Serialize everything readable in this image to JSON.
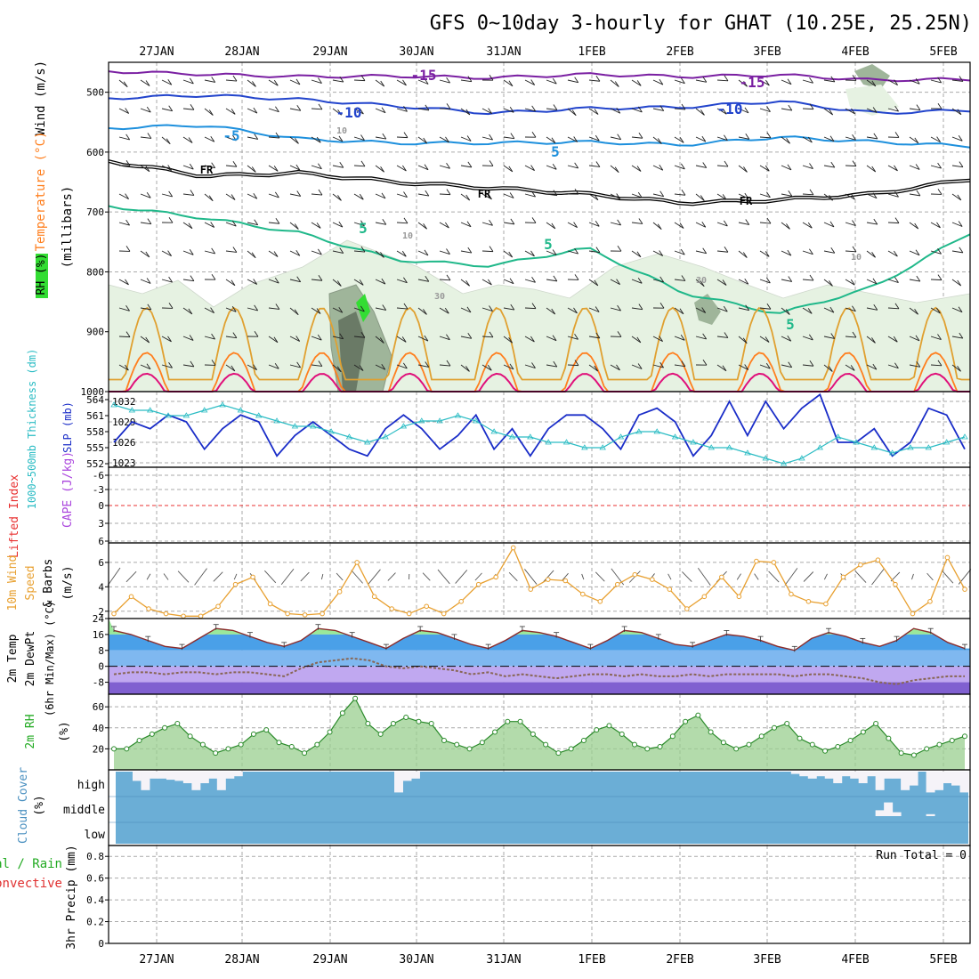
{
  "title": "GFS 0~10day 3-hourly for GHAT (10.25E, 25.25N)",
  "date_labels": [
    "27JAN",
    "28JAN",
    "29JAN",
    "30JAN",
    "31JAN",
    "1FEB",
    "2FEB",
    "3FEB",
    "4FEB",
    "5FEB"
  ],
  "colors": {
    "frame": "#000000",
    "grid": "#aaaaaa",
    "iso_m15": "#7a1fa2",
    "iso_m10": "#2244cc",
    "iso_m5": "#1e90dd",
    "iso_fr": "#000000",
    "iso_p5": "#20b88a",
    "iso_p10": "#e0a030",
    "iso_p15": "#ff7f1e",
    "iso_p20": "#e0107a",
    "rh_light": "#e6f2e2",
    "rh_mid": "#9fb59a",
    "rh_dark": "#6a7a66",
    "rh_bright": "#33dd33",
    "slp": "#1a2dc8",
    "thickness": "#2bbcc4",
    "wind10": "#e8a030",
    "barb": "#555555",
    "temp_warm": "#2a7fe0",
    "temp_green": "#22cc22",
    "temp_cold": "#a080e0",
    "dewpt": "#886655",
    "rh2m_fill": "#9acf8f",
    "cloud_sky": "#6baed6",
    "cloud_cover": "#f5f3f8",
    "lifted": "#e83030",
    "cape": "#aa44dd"
  },
  "chart_data": [
    {
      "type": "contour",
      "panel": "upper-air",
      "ylabel_parts": [
        "Wind (m/s)",
        "Temperature (°C)",
        "RH (%)",
        "(millibars)"
      ],
      "y_ticks": [
        500,
        600,
        700,
        800,
        900,
        1000
      ],
      "ylim": [
        450,
        1000
      ],
      "isotherm_labels": [
        "-15",
        "-15",
        "-10",
        "-10",
        "-5",
        "5",
        "FR",
        "FR",
        "FR",
        "5",
        "5",
        "5"
      ],
      "isotherm_levels_mb": {
        "m15": [
          465,
          470,
          474,
          473,
          476,
          470,
          474,
          471,
          480,
          478
        ],
        "m10": [
          510,
          505,
          512,
          523,
          535,
          527,
          525,
          515,
          535,
          530
        ],
        "m5": [
          560,
          555,
          578,
          585,
          585,
          583,
          588,
          575,
          583,
          590
        ],
        "fr": [
          615,
          640,
          635,
          650,
          660,
          670,
          685,
          680,
          670,
          645
        ],
        "p5": [
          690,
          710,
          735,
          780,
          790,
          760,
          835,
          870,
          825,
          735
        ]
      },
      "rh_contour_labels": [
        "10",
        "10",
        "10",
        "30",
        "30"
      ]
    },
    {
      "type": "line",
      "panel": "slp-thickness",
      "y_left_ticks": [
        "564",
        "561",
        "558",
        "555",
        "552"
      ],
      "y_right_ticks": [
        "1032",
        "1029",
        "1026",
        "1023"
      ],
      "ylabel_left": "1000~500mb Thickness (dm)",
      "ylabel_right": "SLP (mb)",
      "series": [
        {
          "name": "SLP (mb)",
          "values": [
            1026,
            1029,
            1028,
            1030,
            1029,
            1025,
            1028,
            1030,
            1029,
            1024,
            1027,
            1029,
            1027,
            1025,
            1024,
            1028,
            1030,
            1028,
            1025,
            1027,
            1030,
            1025,
            1028,
            1024,
            1028,
            1030,
            1030,
            1028,
            1025,
            1030,
            1031,
            1029,
            1024,
            1027,
            1032,
            1027,
            1032,
            1028,
            1031,
            1033,
            1026,
            1026,
            1028,
            1024,
            1026,
            1031,
            1030,
            1025
          ]
        },
        {
          "name": "Thickness (dm)",
          "values": [
            563,
            562,
            562,
            561,
            561,
            562,
            563,
            562,
            561,
            560,
            559,
            559,
            558,
            557,
            556,
            557,
            559,
            560,
            560,
            561,
            560,
            558,
            557,
            557,
            556,
            556,
            555,
            555,
            557,
            558,
            558,
            557,
            556,
            555,
            555,
            554,
            553,
            552,
            553,
            555,
            557,
            556,
            555,
            554,
            555,
            555,
            556,
            557
          ]
        }
      ]
    },
    {
      "type": "line",
      "panel": "stability",
      "ylabel_left": "Lifted Index",
      "ylabel_right": "CAPE (J/kg)",
      "y_ticks": [
        "-6",
        "-3",
        "0",
        "3",
        "6"
      ],
      "series": [
        {
          "name": "Lifted Index",
          "values": [
            0
          ]
        }
      ]
    },
    {
      "type": "line",
      "panel": "wind10m",
      "ylabel": "10m Wind Speed & Barbs (m/s)",
      "y_ticks": [
        "6",
        "4",
        "2"
      ],
      "ylim": [
        1.4,
        7.6
      ],
      "series": [
        {
          "name": "10m Wind Speed",
          "values": [
            1.8,
            3.2,
            2.2,
            1.8,
            1.6,
            1.6,
            2.4,
            4.2,
            4.8,
            2.6,
            1.8,
            1.7,
            1.8,
            3.6,
            6.0,
            3.2,
            2.2,
            1.8,
            2.4,
            1.8,
            2.8,
            4.2,
            4.8,
            7.2,
            3.8,
            4.6,
            4.5,
            3.4,
            2.8,
            4.2,
            5.0,
            4.6,
            3.8,
            2.2,
            3.2,
            4.8,
            3.2,
            6.1,
            6.0,
            3.4,
            2.8,
            2.6,
            4.8,
            5.8,
            6.2,
            4.2,
            1.8,
            2.8,
            6.4,
            3.8
          ]
        }
      ]
    },
    {
      "type": "area",
      "panel": "temperature",
      "ylabel_parts": [
        "2m Temp",
        "2m DewPt",
        "(6hr Min/Max) (°C)"
      ],
      "y_ticks": [
        "24",
        "16",
        "8",
        "0",
        "-8"
      ],
      "ylim": [
        -14,
        24
      ],
      "series": [
        {
          "name": "2m Temp",
          "values": [
            18,
            16,
            13,
            10,
            9,
            14,
            19,
            18,
            15,
            12,
            10,
            13,
            19,
            18,
            15,
            12,
            9,
            14,
            18,
            17,
            14,
            11,
            9,
            13,
            18,
            17,
            15,
            12,
            9,
            13,
            18,
            17,
            14,
            11,
            10,
            13,
            16,
            15,
            13,
            10,
            8,
            14,
            17,
            15,
            12,
            10,
            13,
            19,
            17,
            12,
            9
          ]
        },
        {
          "name": "2m DewPt",
          "values": [
            -4,
            -3,
            -3,
            -4,
            -3,
            -3,
            -4,
            -3,
            -3,
            -4,
            -5,
            -1,
            2,
            3,
            4,
            3,
            0,
            -1,
            0,
            -1,
            -2,
            -4,
            -3,
            -5,
            -4,
            -5,
            -6,
            -5,
            -4,
            -4,
            -5,
            -4,
            -5,
            -5,
            -4,
            -5,
            -4,
            -4,
            -4,
            -4,
            -5,
            -4,
            -4,
            -5,
            -6,
            -8,
            -9,
            -7,
            -6,
            -5,
            -5
          ]
        }
      ]
    },
    {
      "type": "area",
      "panel": "rh2m",
      "ylabel": "2m RH (%)",
      "y_ticks": [
        "60",
        "40",
        "20"
      ],
      "ylim": [
        0,
        72
      ],
      "series": [
        {
          "name": "2m RH",
          "values": [
            20,
            20,
            28,
            34,
            40,
            44,
            32,
            24,
            16,
            20,
            24,
            34,
            38,
            26,
            22,
            16,
            24,
            36,
            54,
            68,
            44,
            34,
            44,
            50,
            46,
            44,
            28,
            24,
            20,
            26,
            36,
            46,
            46,
            34,
            24,
            16,
            20,
            28,
            38,
            42,
            34,
            24,
            20,
            22,
            32,
            46,
            52,
            36,
            26,
            20,
            24,
            32,
            40,
            44,
            30,
            24,
            18,
            22,
            28,
            36,
            44,
            30,
            16,
            14,
            20,
            24,
            28,
            32
          ]
        }
      ]
    },
    {
      "type": "bar",
      "panel": "cloud",
      "ylabel": "Cloud Cover (%)",
      "row_labels": [
        "high",
        "middle",
        "low"
      ],
      "high_cover": [
        0,
        0,
        0.4,
        0.8,
        0.3,
        0.3,
        0.35,
        0.4,
        0.5,
        0.8,
        0.5,
        0.3,
        0.8,
        0.3,
        0.2,
        0,
        0,
        0,
        0,
        0,
        0,
        0,
        0,
        0,
        0,
        0,
        0,
        0,
        0,
        0,
        0,
        0,
        0,
        0.9,
        0.4,
        0.3,
        0,
        0,
        0,
        0,
        0,
        0,
        0,
        0,
        0,
        0,
        0,
        0,
        0,
        0,
        0,
        0,
        0,
        0,
        0,
        0,
        0,
        0,
        0,
        0,
        0,
        0,
        0,
        0,
        0,
        0,
        0,
        0,
        0,
        0,
        0,
        0,
        0,
        0,
        0,
        0,
        0,
        0,
        0,
        0,
        0.1,
        0.2,
        0.3,
        0.2,
        0.3,
        0.5,
        0.2,
        0.3,
        0.5,
        0.2,
        0.8,
        0.3,
        0.3,
        0.8,
        0.6,
        0,
        0.9,
        0.8,
        0.5,
        0.6,
        0.9
      ],
      "mid_cover": [
        0,
        0,
        0,
        0,
        0,
        0,
        0,
        0,
        0,
        0,
        0,
        0,
        0,
        0,
        0,
        0,
        0,
        0,
        0,
        0,
        0,
        0,
        0,
        0,
        0,
        0,
        0,
        0,
        0,
        0,
        0,
        0,
        0,
        0,
        0,
        0,
        0,
        0,
        0,
        0,
        0,
        0,
        0,
        0,
        0,
        0,
        0,
        0,
        0,
        0,
        0,
        0,
        0,
        0,
        0,
        0,
        0,
        0,
        0,
        0,
        0,
        0,
        0,
        0,
        0,
        0,
        0,
        0,
        0,
        0,
        0,
        0,
        0,
        0,
        0,
        0,
        0,
        0,
        0,
        0,
        0,
        0,
        0,
        0,
        0,
        0,
        0,
        0,
        0,
        0,
        0.3,
        0.7,
        0.2,
        0,
        0,
        0,
        0.1,
        0,
        0,
        0,
        0
      ]
    },
    {
      "type": "bar",
      "panel": "precip",
      "ylabel_parts": [
        "Total / Rain",
        "Convective",
        "3hr Precip (mm)"
      ],
      "y_ticks": [
        "0.8",
        "0.6",
        "0.4",
        "0.2",
        "0"
      ],
      "ylim": [
        0,
        0.9
      ],
      "run_total": "Run Total = 0",
      "values": [
        0
      ]
    }
  ]
}
